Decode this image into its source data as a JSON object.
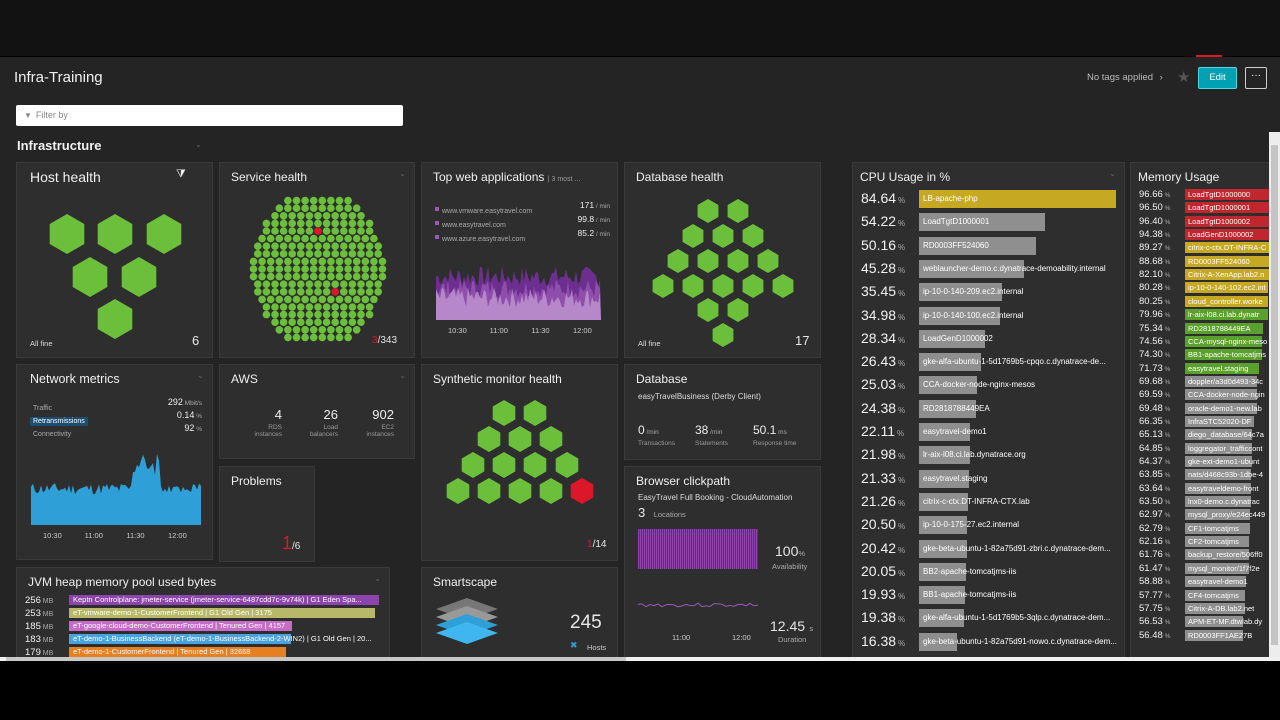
{
  "header": {
    "title": "Infra-Training",
    "tags": "No tags applied",
    "edit_label": "Edit",
    "more_label": "···"
  },
  "filter": {
    "placeholder": "Filter by"
  },
  "section": {
    "title": "Infrastructure"
  },
  "host_health": {
    "title": "Host health",
    "status": "All fine",
    "count": "6"
  },
  "service_health": {
    "title": "Service health",
    "problem": "3",
    "total": "/343"
  },
  "top_web": {
    "title": "Top web applications",
    "subtitle": "| 3 most ...",
    "apps": [
      {
        "name": "www.vmware.easytravel.com",
        "value": "171",
        "unit": "/ min"
      },
      {
        "name": "www.easytravel.com",
        "value": "99.8",
        "unit": "/ min"
      },
      {
        "name": "www.azure.easytravel.com",
        "value": "85.2",
        "unit": "/ min"
      }
    ],
    "times": [
      "10:30",
      "11:00",
      "11:30",
      "12:00"
    ]
  },
  "database_health": {
    "title": "Database health",
    "status": "All fine",
    "count": "17"
  },
  "network": {
    "title": "Network metrics",
    "rows": [
      {
        "label": "Traffic",
        "value": "292",
        "unit": "Mbit/s"
      },
      {
        "label": "Retransmissions",
        "value": "0.14",
        "unit": "%"
      },
      {
        "label": "Connectivity",
        "value": "92",
        "unit": "%"
      }
    ],
    "times": [
      "10:30",
      "11:00",
      "11:30",
      "12:00"
    ]
  },
  "aws": {
    "title": "AWS",
    "items": [
      {
        "value": "4",
        "label1": "RDS",
        "label2": "instances"
      },
      {
        "value": "26",
        "label1": "Load",
        "label2": "balancers"
      },
      {
        "value": "902",
        "label1": "EC2",
        "label2": "instances"
      }
    ]
  },
  "problems": {
    "title": "Problems",
    "problem": "1",
    "total": "/6"
  },
  "synthetic": {
    "title": "Synthetic monitor health",
    "problem": "1",
    "total": "/14"
  },
  "database": {
    "title": "Database",
    "subtitle": "easyTravelBusiness (Derby Client)",
    "items": [
      {
        "value": "0",
        "unit": "/min",
        "label": "Transactions"
      },
      {
        "value": "38",
        "unit": "/min",
        "label": "Statements"
      },
      {
        "value": "50.1",
        "unit": "ms",
        "label": "Response time"
      }
    ]
  },
  "clickpath": {
    "title": "Browser clickpath",
    "subtitle": "EasyTravel Full Booking - CloudAutomation",
    "locations_value": "3",
    "locations_label": "Locations",
    "availability": "100",
    "availability_unit": "%",
    "availability_label": "Availability",
    "duration": "12.45",
    "duration_unit": "s",
    "duration_label": "Duration",
    "times": [
      "11:00",
      "12:00"
    ]
  },
  "smartscape": {
    "title": "Smartscape",
    "count": "245",
    "label": "Hosts"
  },
  "jvm": {
    "title": "JVM heap memory pool used bytes",
    "rows": [
      {
        "value": "256",
        "unit": "MB",
        "label": "Keptn Controlplane: jmeter-service (jmeter-service-6487cdd7c-9v74k) | G1 Eden Spa...",
        "color": "#8e44ad",
        "fill": 1.0
      },
      {
        "value": "253",
        "unit": "MB",
        "label": "eT-vmware-demo-1-CustomerFrontend | G1 Old Gen | 3175",
        "color": "#b8b86a",
        "fill": 0.988
      },
      {
        "value": "185",
        "unit": "MB",
        "label": "eT-google-cloud-demo-CustomerFrontend | Tenured Gen | 4157",
        "color": "#c56cc7",
        "fill": 0.72
      },
      {
        "value": "183",
        "unit": "MB",
        "label": "eT-demo-1-BusinessBackend (eT-demo-1-BusinessBackend-2-WIN2) | G1 Old Gen | 20...",
        "color": "#4aa3df",
        "fill": 0.715
      },
      {
        "value": "179",
        "unit": "MB",
        "label": "eT-demo-1-CustomerFrontend | Tenured Gen | 32668",
        "color": "#e67e22",
        "fill": 0.7
      }
    ]
  },
  "cpu": {
    "title": "CPU Usage in %",
    "unit": "%",
    "rows": [
      {
        "value": "84.64",
        "label": "LB-apache-php",
        "color": "#c6a823"
      },
      {
        "value": "54.22",
        "label": "LoadTgtD1000001",
        "color": "#8f8f8f"
      },
      {
        "value": "50.16",
        "label": "RD0003FF524060",
        "color": "#8f8f8f"
      },
      {
        "value": "45.28",
        "label": "weblauncher-demo.c.dynatrace-demoability.internal",
        "color": "#8f8f8f"
      },
      {
        "value": "35.45",
        "label": "ip-10-0-140-209.ec2.internal",
        "color": "#8f8f8f"
      },
      {
        "value": "34.98",
        "label": "ip-10-0-140-100.ec2.internal",
        "color": "#8f8f8f"
      },
      {
        "value": "28.34",
        "label": "LoadGenD1000002",
        "color": "#8f8f8f"
      },
      {
        "value": "26.43",
        "label": "gke-alfa-ubuntu-1-5d1769b5-cpqo.c.dynatrace-de...",
        "color": "#8f8f8f"
      },
      {
        "value": "25.03",
        "label": "CCA-docker-node-nginx-mesos",
        "color": "#8f8f8f"
      },
      {
        "value": "24.38",
        "label": "RD2818788449EA",
        "color": "#8f8f8f"
      },
      {
        "value": "22.11",
        "label": "easytravel-demo1",
        "color": "#8f8f8f"
      },
      {
        "value": "21.98",
        "label": "lr-aix-l08.ci.lab.dynatrace.org",
        "color": "#8f8f8f"
      },
      {
        "value": "21.33",
        "label": "easytravel.staging",
        "color": "#8f8f8f"
      },
      {
        "value": "21.26",
        "label": "citrix-c-ctx.DT-INFRA-CTX.lab",
        "color": "#8f8f8f"
      },
      {
        "value": "20.50",
        "label": "ip-10-0-175-27.ec2.internal",
        "color": "#8f8f8f"
      },
      {
        "value": "20.42",
        "label": "gke-beta-ubuntu-1-82a75d91-zbri.c.dynatrace-dem...",
        "color": "#8f8f8f"
      },
      {
        "value": "20.05",
        "label": "BB2-apache-tomcatjms-iis",
        "color": "#8f8f8f"
      },
      {
        "value": "19.93",
        "label": "BB1-apache-tomcatjms-iis",
        "color": "#8f8f8f"
      },
      {
        "value": "19.38",
        "label": "gke-alfa-ubuntu-1-5d1769b5-3qlp.c.dynatrace-dem...",
        "color": "#8f8f8f"
      },
      {
        "value": "16.38",
        "label": "gke-beta-ubuntu-1-82a75d91-nowo.c.dynatrace-dem...",
        "color": "#8f8f8f"
      }
    ]
  },
  "memory": {
    "title": "Memory Usage",
    "unit": "%",
    "rows": [
      {
        "value": "96.66",
        "label": "LoadTgtD1000000",
        "color": "#c0262d"
      },
      {
        "value": "96.50",
        "label": "LoadTgtD1000001",
        "color": "#c0262d"
      },
      {
        "value": "96.40",
        "label": "LoadTgtD1000002",
        "color": "#c0262d"
      },
      {
        "value": "94.38",
        "label": "LoadGenD1000002",
        "color": "#c0262d"
      },
      {
        "value": "89.27",
        "label": "citrix-c-ctx.DT-INFRA-C",
        "color": "#c6a823"
      },
      {
        "value": "88.68",
        "label": "RD0003FF524060",
        "color": "#c6a823"
      },
      {
        "value": "82.10",
        "label": "Citrix-A-XenApp.lab2.n",
        "color": "#c6a823"
      },
      {
        "value": "80.28",
        "label": "ip-10-0-140-102.ec2.int",
        "color": "#c6a823"
      },
      {
        "value": "80.25",
        "label": "cloud_controller.worke",
        "color": "#c6a823"
      },
      {
        "value": "79.96",
        "label": "lr-aix-l08.ci.lab.dynatr",
        "color": "#5aa02c"
      },
      {
        "value": "75.34",
        "label": "RD2818788449EA",
        "color": "#5aa02c"
      },
      {
        "value": "74.56",
        "label": "CCA-mysql-nginx-meso",
        "color": "#5aa02c"
      },
      {
        "value": "74.30",
        "label": "BB1-apache-tomcatjms",
        "color": "#5aa02c"
      },
      {
        "value": "71.73",
        "label": "easytravel.staging",
        "color": "#5aa02c"
      },
      {
        "value": "69.68",
        "label": "doppler/a3d0d493-34c",
        "color": "#8f8f8f"
      },
      {
        "value": "69.59",
        "label": "CCA-docker-node-ngin",
        "color": "#8f8f8f"
      },
      {
        "value": "69.48",
        "label": "oracle-demo1-new.lab",
        "color": "#8f8f8f"
      },
      {
        "value": "66.35",
        "label": "InfraSTC52020-DF",
        "color": "#8f8f8f"
      },
      {
        "value": "65.13",
        "label": "diego_database/64c7a",
        "color": "#8f8f8f"
      },
      {
        "value": "64.85",
        "label": "loggregator_trafficcont",
        "color": "#8f8f8f"
      },
      {
        "value": "64.37",
        "label": "gke-ext-demo1-ubunt",
        "color": "#8f8f8f"
      },
      {
        "value": "63.85",
        "label": "nats/d468c93b-1dbe-4",
        "color": "#8f8f8f"
      },
      {
        "value": "63.64",
        "label": "easytraveldemo-front",
        "color": "#8f8f8f"
      },
      {
        "value": "63.50",
        "label": "lnx0-demo.c.dynatrac",
        "color": "#8f8f8f"
      },
      {
        "value": "62.97",
        "label": "mysql_proxy/e24ec449",
        "color": "#8f8f8f"
      },
      {
        "value": "62.79",
        "label": "CF1-tomcatjms",
        "color": "#8f8f8f"
      },
      {
        "value": "62.16",
        "label": "CF2-tomcatjms",
        "color": "#8f8f8f"
      },
      {
        "value": "61.76",
        "label": "backup_restore/506ff0",
        "color": "#8f8f8f"
      },
      {
        "value": "61.47",
        "label": "mysql_monitor/1f7f2e",
        "color": "#8f8f8f"
      },
      {
        "value": "58.88",
        "label": "easytravel-demo1",
        "color": "#8f8f8f"
      },
      {
        "value": "57.77",
        "label": "CF4-tomcatjms",
        "color": "#8f8f8f"
      },
      {
        "value": "57.75",
        "label": "Citrix-A-DB.lab2.net",
        "color": "#8f8f8f"
      },
      {
        "value": "56.53",
        "label": "APM-ET-MF.dtwlab.dy",
        "color": "#8f8f8f"
      },
      {
        "value": "56.48",
        "label": "RD0003FF1AE27B",
        "color": "#8f8f8f"
      }
    ]
  },
  "colors": {
    "green": "#6cbf3b",
    "red": "#dc172a",
    "purple": "#8e44ad",
    "blue": "#2f9fd8",
    "accent": "#00a1b2"
  }
}
